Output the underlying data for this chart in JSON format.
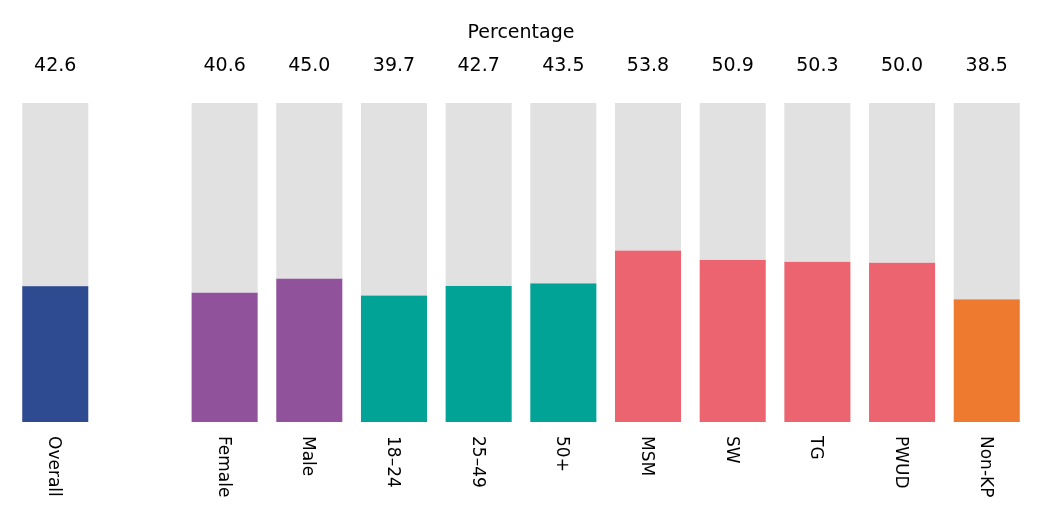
{
  "chart_data": {
    "type": "bar",
    "title": "Percentage",
    "stacked": true,
    "ylim": [
      0,
      100
    ],
    "tick_labels": "x",
    "categories": [
      "Overall",
      null,
      "Female",
      "Male",
      "18–24",
      "25–49",
      "50+",
      "MSM",
      "SW",
      "TG",
      "PWUD",
      "Non-KP"
    ],
    "series": [
      {
        "colors": [
          "#2e4a91",
          null,
          "#8f529b",
          "#8f529b",
          "#00a396",
          "#00a396",
          "#00a396",
          "#eb6470",
          "#eb6470",
          "#eb6470",
          "#eb6470",
          "#ee7a30"
        ],
        "values": [
          42.6,
          null,
          40.6,
          45.0,
          39.7,
          42.7,
          43.5,
          53.8,
          50.9,
          50.3,
          50.0,
          38.5
        ],
        "value_labels": [
          "42.6",
          null,
          "40.6",
          "45.0",
          "39.7",
          "42.7",
          "43.5",
          "53.8",
          "50.9",
          "50.3",
          "50.0",
          "38.5"
        ]
      },
      {
        "color": "#e1e1e1",
        "values": [
          57.4,
          null,
          59.4,
          55.0,
          60.3,
          57.3,
          56.5,
          46.2,
          49.1,
          49.7,
          50.0,
          61.5
        ]
      }
    ]
  }
}
